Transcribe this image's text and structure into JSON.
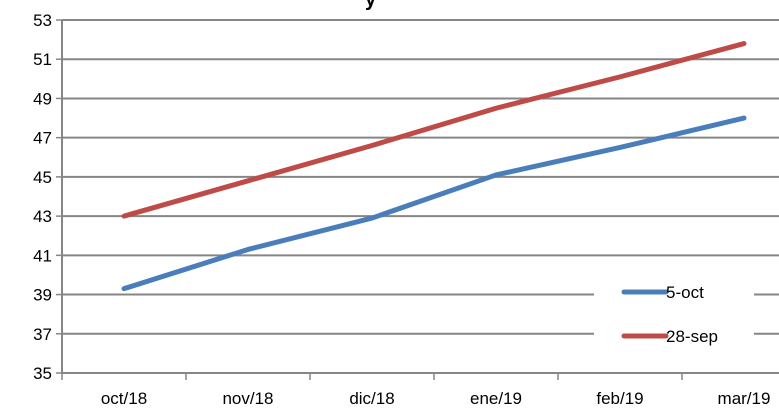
{
  "chart_data": {
    "type": "line",
    "title_fragment": "y",
    "categories": [
      "oct/18",
      "nov/18",
      "dic/18",
      "ene/19",
      "feb/19",
      "mar/19"
    ],
    "y_ticks": [
      "35",
      "37",
      "39",
      "41",
      "43",
      "45",
      "47",
      "49",
      "51",
      "53"
    ],
    "ylim": [
      35,
      53
    ],
    "grid": true,
    "legend_position": "bottom-right",
    "series": [
      {
        "name": "5-oct",
        "color": "#4a7ebb",
        "values": [
          39.3,
          41.3,
          42.9,
          45.1,
          46.5,
          48.0
        ]
      },
      {
        "name": "28-sep",
        "color": "#be4b48",
        "values": [
          43.0,
          44.8,
          46.6,
          48.5,
          50.1,
          51.8
        ]
      }
    ]
  }
}
